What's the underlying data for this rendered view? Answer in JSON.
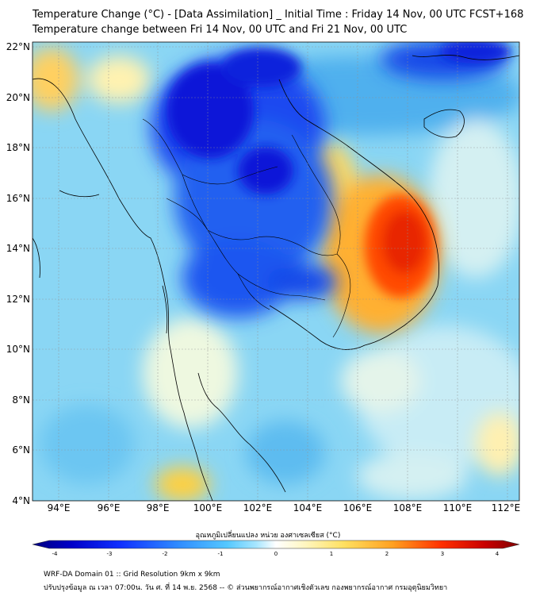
{
  "title_line1": "Temperature Change (°C) - [Data Assimilation] _ Initial Time : Friday 14 Nov, 00 UTC FCST+168",
  "title_line2": "Temperature change between Fri 14 Nov, 00 UTC and Fri 21 Nov, 00 UTC",
  "lat_labels": [
    "22°N",
    "20°N",
    "18°N",
    "16°N",
    "14°N",
    "12°N",
    "10°N",
    "8°N",
    "6°N",
    "4°N"
  ],
  "lon_labels": [
    "94°E",
    "96°E",
    "98°E",
    "100°E",
    "102°E",
    "104°E",
    "106°E",
    "108°E",
    "110°E",
    "112°E"
  ],
  "colorbar": {
    "label": "อุณหภูมิเปลี่ยนแปลง หน่วย องศาเซลเซียส (°C)",
    "ticks": [
      "-4",
      "-3",
      "-2",
      "-1",
      "0",
      "1",
      "2",
      "3",
      "4"
    ],
    "colors": [
      "#000080",
      "#0000d0",
      "#1040ff",
      "#2f8cff",
      "#55c8ff",
      "#a0e4ff",
      "#e6f7ff",
      "#ffffff",
      "#fffbd0",
      "#ffec7a",
      "#ffc040",
      "#ff8010",
      "#ff3000",
      "#c80000",
      "#800000"
    ]
  },
  "footer_line1": "WRF-DA Domain 01 :: Grid Resolution 9km x 9km",
  "footer_line2": "ปรับปรุงข้อมูล ณ เวลา 07:00น. วัน ศ. ที่ 14 พ.ย. 2568 -- © ส่วนพยากรณ์อากาศเชิงตัวเลข กองพยากรณ์อากาศ กรมอุตุนิยมวิทยา"
}
